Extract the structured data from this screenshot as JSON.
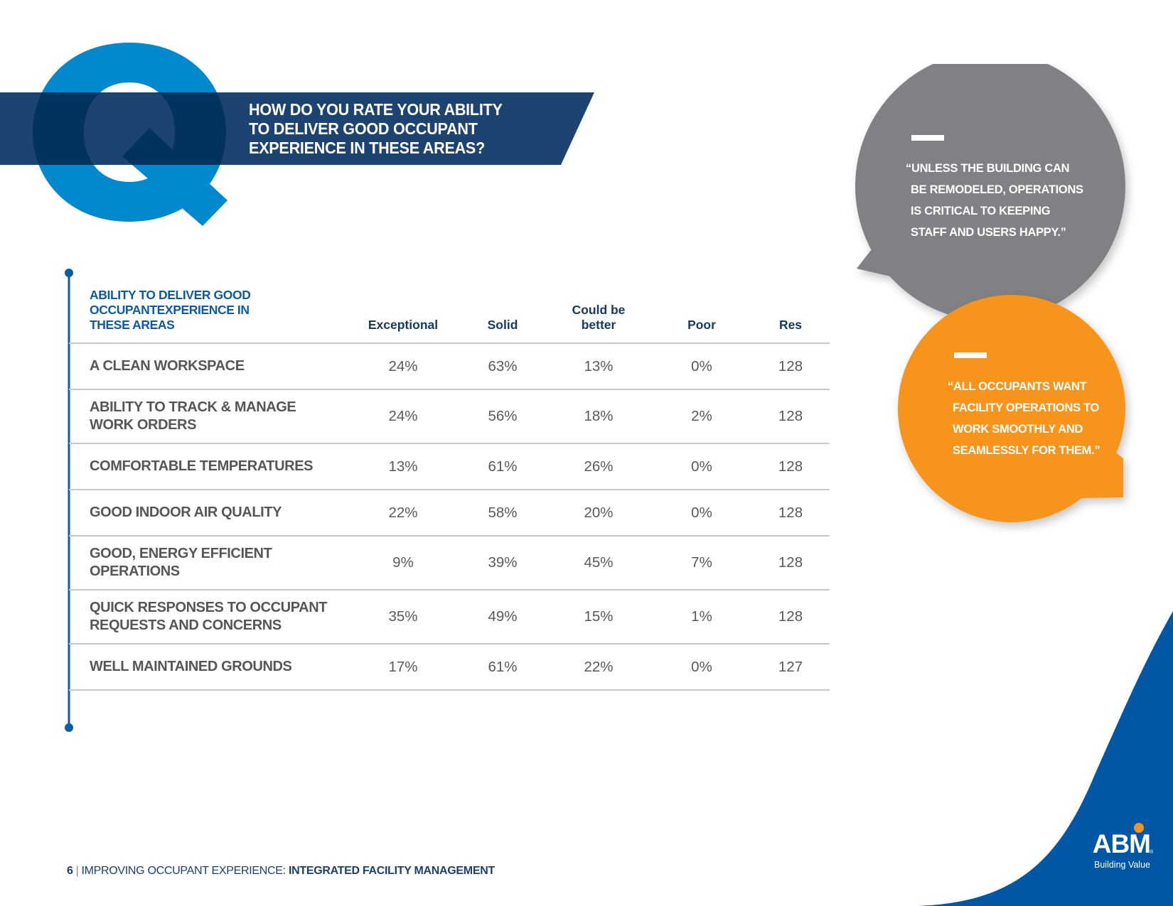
{
  "header": {
    "glyph": "Q",
    "question_lines": [
      "HOW DO YOU RATE YOUR ABILITY",
      "TO DELIVER GOOD OCCUPANT",
      "EXPERIENCE IN THESE AREAS?"
    ]
  },
  "table": {
    "area_header_lines": [
      "ABILITY TO DELIVER GOOD",
      "OCCUPANTEXPERIENCE IN",
      "THESE AREAS"
    ],
    "columns": [
      {
        "key": "exceptional",
        "label_lines": [
          "Exceptional"
        ]
      },
      {
        "key": "solid",
        "label_lines": [
          "Solid"
        ]
      },
      {
        "key": "could_be_better",
        "label_lines": [
          "Could be",
          "better"
        ]
      },
      {
        "key": "poor",
        "label_lines": [
          "Poor"
        ]
      },
      {
        "key": "res",
        "label_lines": [
          "Res"
        ]
      }
    ],
    "rows": [
      {
        "area_lines": [
          "A CLEAN WORKSPACE"
        ],
        "values": [
          "24%",
          "63%",
          "13%",
          "0%",
          "128"
        ]
      },
      {
        "area_lines": [
          "ABILITY TO TRACK & MANAGE",
          "WORK ORDERS"
        ],
        "values": [
          "24%",
          "56%",
          "18%",
          "2%",
          "128"
        ]
      },
      {
        "area_lines": [
          "COMFORTABLE TEMPERATURES"
        ],
        "values": [
          "13%",
          "61%",
          "26%",
          "0%",
          "128"
        ]
      },
      {
        "area_lines": [
          "GOOD INDOOR AIR QUALITY"
        ],
        "values": [
          "22%",
          "58%",
          "20%",
          "0%",
          "128"
        ]
      },
      {
        "area_lines": [
          "GOOD, ENERGY EFFICIENT",
          "OPERATIONS"
        ],
        "values": [
          "9%",
          "39%",
          "45%",
          "7%",
          "128"
        ]
      },
      {
        "area_lines": [
          "QUICK RESPONSES TO OCCUPANT",
          "REQUESTS AND CONCERNS"
        ],
        "values": [
          "35%",
          "49%",
          "15%",
          "1%",
          "128"
        ]
      },
      {
        "area_lines": [
          "WELL MAINTAINED GROUNDS"
        ],
        "values": [
          "17%",
          "61%",
          "22%",
          "0%",
          "127"
        ]
      }
    ]
  },
  "quotes": [
    {
      "color": "#808184",
      "lines": [
        "“UNLESS THE BUILDING CAN",
        "BE REMODELED, OPERATIONS",
        "IS CRITICAL TO KEEPING",
        "STAFF AND USERS HAPPY.”"
      ]
    },
    {
      "color": "#f7941d",
      "lines": [
        "“ALL OCCUPANTS WANT",
        "FACILITY OPERATIONS TO",
        "WORK SMOOTHLY AND",
        "SEAMLESSLY FOR THEM.”"
      ]
    }
  ],
  "logo": {
    "wordmark": "ABM",
    "registered": "®",
    "tagline": "Building Value"
  },
  "footer": {
    "page_number": "6",
    "separator": "|",
    "title_regular": "IMPROVING OCCUPANT EXPERIENCE: ",
    "title_bold": "INTEGRATED FACILITY MANAGEMENT"
  },
  "colors": {
    "q_blue": "#0089cf",
    "banner_navy": "#1d4370",
    "overlap_navy": "#02335f",
    "accent_blue": "#0d5aa7",
    "corner_blue": "#0057a6",
    "quote_gray": "#808184",
    "quote_orange": "#f7941d"
  }
}
